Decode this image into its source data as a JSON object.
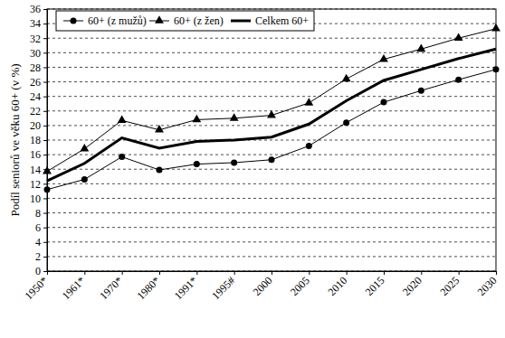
{
  "chart_data": {
    "type": "line",
    "y_label": "Podíl seniorů ve věku 60+ (v %)",
    "categories": [
      "1950*",
      "1961*",
      "1970*",
      "1980*",
      "1991*",
      "1995#",
      "2000",
      "2005",
      "2010",
      "2015",
      "2020",
      "2025",
      "2030"
    ],
    "series": [
      {
        "name": "60+ (z mužů)",
        "color": "#000000",
        "marker": "circle",
        "line_style": "solid",
        "values": [
          11.2,
          12.6,
          15.7,
          13.9,
          14.7,
          14.9,
          15.3,
          17.2,
          20.4,
          23.2,
          24.8,
          26.3,
          27.7
        ]
      },
      {
        "name": "60+ (z žen)",
        "color": "#000000",
        "marker": "triangle",
        "line_style": "solid",
        "values": [
          13.7,
          16.8,
          20.7,
          19.4,
          20.8,
          21.0,
          21.4,
          23.1,
          26.4,
          29.1,
          30.5,
          32.0,
          33.3
        ]
      },
      {
        "name": "Celkem 60+",
        "color": "#000000",
        "marker": "none",
        "line_style": "solid",
        "values": [
          12.4,
          14.8,
          18.3,
          16.9,
          17.8,
          18.0,
          18.4,
          20.2,
          23.4,
          26.2,
          27.7,
          29.2,
          30.5
        ]
      }
    ],
    "ylim": [
      0,
      36
    ],
    "yticks": [
      0,
      2,
      4,
      6,
      8,
      10,
      12,
      14,
      16,
      18,
      20,
      22,
      24,
      26,
      28,
      30,
      32,
      34,
      36
    ],
    "grid": true,
    "legend": "top-left"
  }
}
